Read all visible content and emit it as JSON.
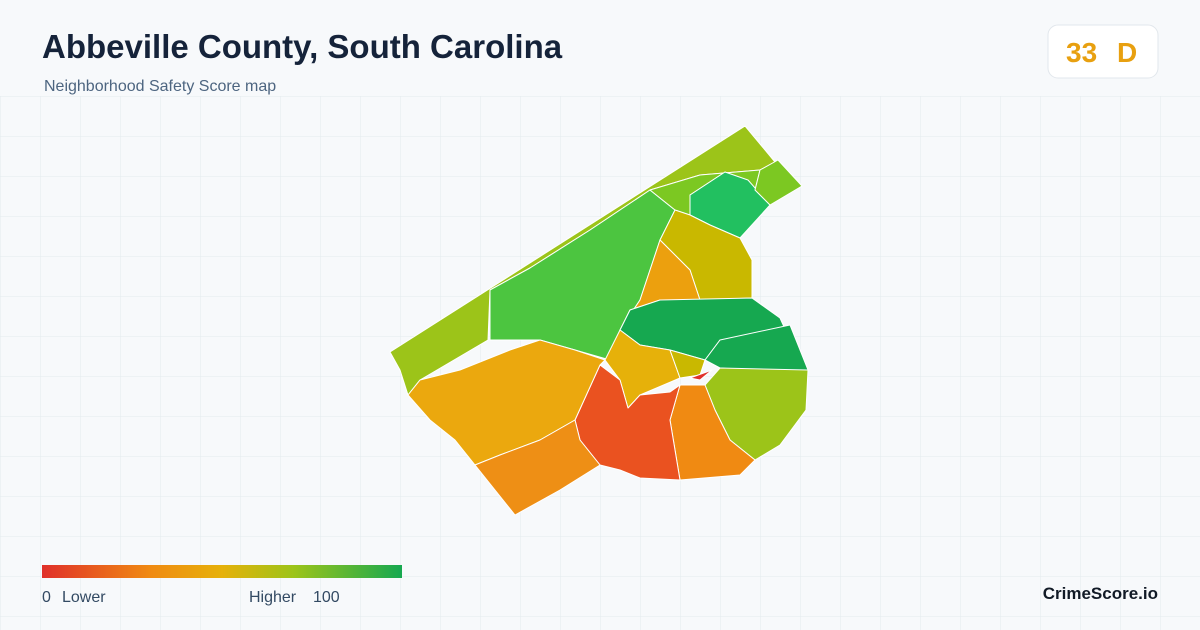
{
  "header": {
    "title": "Abbeville County, South Carolina",
    "subtitle": "Neighborhood Safety Score map"
  },
  "score": {
    "value": "33",
    "grade": "D"
  },
  "legend": {
    "min": "0",
    "min_label": "Lower",
    "max_label": "Higher",
    "max": "100"
  },
  "brand": "CrimeScore.io"
}
